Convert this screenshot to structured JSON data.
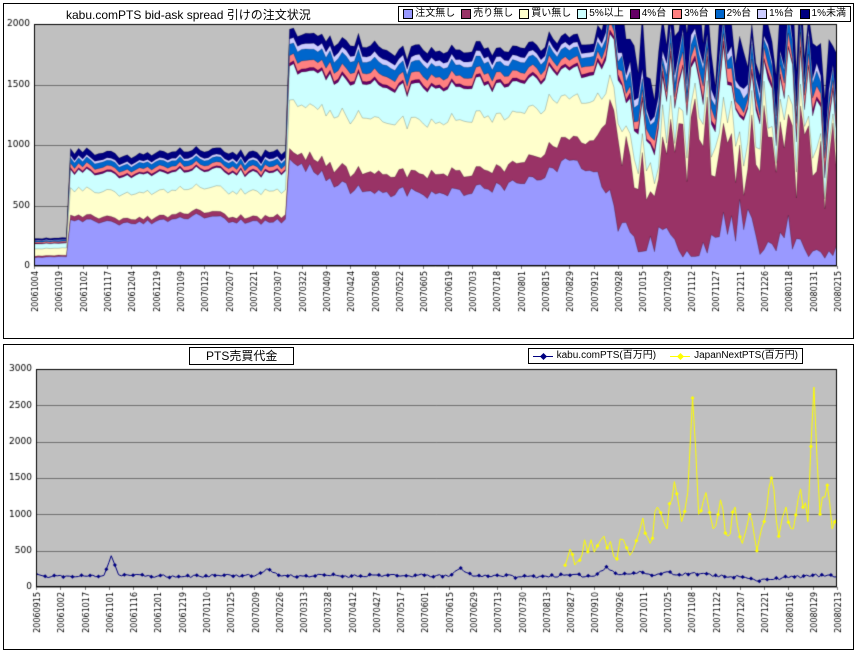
{
  "chart_data": [
    {
      "type": "area",
      "stacked": true,
      "title": "kabu.comPTS bid-ask spread 引けの注文状況",
      "ylim": [
        0,
        2000
      ],
      "yticks": [
        0,
        500,
        1000,
        1500,
        2000
      ],
      "plot_bg": "#C0C0C0",
      "grid": true,
      "legend_position": "top-right",
      "x_labels": [
        "20061004",
        "20061019",
        "20061102",
        "20061117",
        "20061204",
        "20061219",
        "20070109",
        "20070123",
        "20070207",
        "20070221",
        "20070307",
        "20070322",
        "20070409",
        "20070424",
        "20070508",
        "20070522",
        "20070605",
        "20070619",
        "20070703",
        "20070718",
        "20070801",
        "20070815",
        "20070829",
        "20070912",
        "20070928",
        "20071015",
        "20071029",
        "20071112",
        "20071127",
        "20071211",
        "20071226",
        "20080118",
        "20080131",
        "20080215"
      ],
      "volatility": [
        0.05,
        0.05,
        0.06,
        0.06,
        0.06,
        0.06,
        0.06,
        0.06,
        0.06,
        0.06,
        0.06,
        0.07,
        0.07,
        0.07,
        0.07,
        0.07,
        0.07,
        0.07,
        0.07,
        0.07,
        0.07,
        0.07,
        0.07,
        0.07,
        0.55,
        0.55,
        0.55,
        0.55,
        0.55,
        0.55,
        0.55,
        0.55,
        0.55,
        0.55
      ],
      "series": [
        {
          "name": "注文無し",
          "color": "#9999FF",
          "values": [
            70,
            75,
            380,
            360,
            340,
            370,
            390,
            420,
            380,
            360,
            370,
            850,
            720,
            640,
            600,
            615,
            590,
            605,
            625,
            650,
            700,
            755,
            880,
            800,
            350,
            150,
            280,
            80,
            260,
            400,
            120,
            280,
            90,
            180
          ]
        },
        {
          "name": "売り無し",
          "color": "#993366",
          "values": [
            12,
            12,
            38,
            40,
            35,
            36,
            40,
            42,
            38,
            40,
            42,
            90,
            120,
            150,
            160,
            150,
            170,
            160,
            150,
            160,
            170,
            200,
            180,
            250,
            700,
            900,
            650,
            1100,
            700,
            500,
            950,
            600,
            1000,
            750
          ]
        },
        {
          "name": "買い無し",
          "color": "#FFFFCC",
          "values": [
            60,
            58,
            215,
            210,
            200,
            215,
            205,
            195,
            210,
            205,
            210,
            420,
            430,
            440,
            450,
            430,
            420,
            430,
            440,
            420,
            400,
            380,
            350,
            330,
            200,
            150,
            180,
            120,
            160,
            200,
            140,
            180,
            130,
            160
          ]
        },
        {
          "name": "5%以上",
          "color": "#CCFFFF",
          "values": [
            40,
            40,
            150,
            150,
            145,
            150,
            148,
            145,
            150,
            152,
            150,
            280,
            290,
            300,
            290,
            280,
            290,
            280,
            270,
            260,
            250,
            240,
            230,
            220,
            280,
            260,
            300,
            240,
            280,
            260,
            300,
            250,
            280,
            260
          ]
        },
        {
          "name": "4%台",
          "color": "#660066",
          "values": [
            5,
            5,
            15,
            15,
            14,
            15,
            15,
            14,
            15,
            15,
            15,
            25,
            25,
            26,
            25,
            24,
            25,
            25,
            24,
            25,
            25,
            24,
            25,
            25,
            35,
            30,
            40,
            30,
            35,
            30,
            40,
            30,
            35,
            30
          ]
        },
        {
          "name": "3%台",
          "color": "#FF8080",
          "values": [
            10,
            10,
            35,
            34,
            33,
            35,
            34,
            33,
            35,
            34,
            35,
            65,
            68,
            70,
            68,
            66,
            68,
            66,
            65,
            64,
            62,
            60,
            58,
            55,
            80,
            70,
            90,
            70,
            85,
            75,
            90,
            70,
            85,
            75
          ]
        },
        {
          "name": "2%台",
          "color": "#0066CC",
          "values": [
            10,
            10,
            45,
            44,
            43,
            45,
            44,
            43,
            45,
            44,
            45,
            90,
            92,
            94,
            92,
            90,
            92,
            90,
            88,
            86,
            84,
            82,
            80,
            78,
            100,
            90,
            110,
            90,
            105,
            95,
            110,
            90,
            105,
            95
          ]
        },
        {
          "name": "1%台",
          "color": "#CCCCFF",
          "values": [
            5,
            5,
            20,
            20,
            19,
            20,
            20,
            19,
            20,
            20,
            20,
            45,
            46,
            47,
            46,
            45,
            46,
            45,
            44,
            43,
            42,
            41,
            40,
            39,
            60,
            55,
            65,
            55,
            60,
            55,
            65,
            55,
            60,
            55
          ]
        },
        {
          "name": "1%未満",
          "color": "#000080",
          "values": [
            15,
            15,
            55,
            56,
            55,
            56,
            55,
            54,
            56,
            55,
            55,
            80,
            82,
            84,
            82,
            80,
            82,
            80,
            78,
            76,
            74,
            72,
            70,
            68,
            250,
            350,
            200,
            380,
            220,
            300,
            180,
            350,
            220,
            300
          ]
        }
      ]
    },
    {
      "type": "line",
      "title": "PTS売買代金",
      "ylim": [
        0,
        3000
      ],
      "yticks": [
        0,
        500,
        1000,
        1500,
        2000,
        2500,
        3000
      ],
      "plot_bg": "#C0C0C0",
      "grid": true,
      "legend_position": "top-right",
      "x_labels": [
        "20060915",
        "20061002",
        "20061017",
        "20061101",
        "20061116",
        "20061201",
        "20061219",
        "20070110",
        "20070125",
        "20070209",
        "20070226",
        "20070313",
        "20070328",
        "20070412",
        "20070427",
        "20070517",
        "20070601",
        "20070615",
        "20070629",
        "20070713",
        "20070730",
        "20070813",
        "20070827",
        "20070910",
        "20070926",
        "20071011",
        "20071025",
        "20071108",
        "20071122",
        "20071207",
        "20071221",
        "20080116",
        "20080129",
        "20080213"
      ],
      "series": [
        {
          "name": "kabu.comPTS(百万円)",
          "color": "#000080",
          "marker": "diamond",
          "jitter": 20,
          "points": [
            [
              0,
              180
            ],
            [
              0.5,
              130
            ],
            [
              1,
              160
            ],
            [
              1.5,
              140
            ],
            [
              2,
              150
            ],
            [
              2.8,
              160
            ],
            [
              3.1,
              430
            ],
            [
              3.4,
              170
            ],
            [
              4,
              160
            ],
            [
              5,
              150
            ],
            [
              6,
              140
            ],
            [
              7,
              155
            ],
            [
              8,
              165
            ],
            [
              9,
              150
            ],
            [
              9.5,
              250
            ],
            [
              10,
              160
            ],
            [
              11,
              150
            ],
            [
              12,
              160
            ],
            [
              13,
              150
            ],
            [
              14,
              165
            ],
            [
              15,
              150
            ],
            [
              16,
              160
            ],
            [
              17,
              145
            ],
            [
              17.5,
              260
            ],
            [
              18,
              150
            ],
            [
              19,
              160
            ],
            [
              20,
              140
            ],
            [
              21,
              150
            ],
            [
              22,
              160
            ],
            [
              23,
              150
            ],
            [
              23.5,
              280
            ],
            [
              24,
              170
            ],
            [
              25,
              200
            ],
            [
              25.5,
              160
            ],
            [
              26,
              210
            ],
            [
              26.5,
              170
            ],
            [
              27,
              190
            ],
            [
              28,
              160
            ],
            [
              29,
              140
            ],
            [
              29.8,
              80
            ],
            [
              30,
              110
            ],
            [
              31,
              130
            ],
            [
              32,
              160
            ],
            [
              33,
              140
            ]
          ]
        },
        {
          "name": "JapanNextPTS(百万円)",
          "color": "#FFFF00",
          "marker": "diamond",
          "jitter": 130,
          "points": [
            [
              21.8,
              300
            ],
            [
              22,
              520
            ],
            [
              22.3,
              350
            ],
            [
              22.6,
              650
            ],
            [
              23,
              480
            ],
            [
              23.4,
              700
            ],
            [
              23.8,
              420
            ],
            [
              24.2,
              650
            ],
            [
              24.6,
              500
            ],
            [
              25,
              950
            ],
            [
              25.3,
              600
            ],
            [
              25.6,
              1100
            ],
            [
              26,
              800
            ],
            [
              26.3,
              1450
            ],
            [
              26.6,
              900
            ],
            [
              26.85,
              1300
            ],
            [
              27.05,
              2600
            ],
            [
              27.3,
              1000
            ],
            [
              27.6,
              1300
            ],
            [
              27.9,
              800
            ],
            [
              28.2,
              1200
            ],
            [
              28.5,
              700
            ],
            [
              28.8,
              1100
            ],
            [
              29.1,
              600
            ],
            [
              29.4,
              1000
            ],
            [
              29.7,
              500
            ],
            [
              30,
              900
            ],
            [
              30.3,
              1500
            ],
            [
              30.6,
              700
            ],
            [
              30.9,
              1100
            ],
            [
              31.2,
              800
            ],
            [
              31.5,
              1350
            ],
            [
              31.8,
              900
            ],
            [
              32.05,
              2750
            ],
            [
              32.3,
              1000
            ],
            [
              32.6,
              1400
            ],
            [
              32.8,
              800
            ],
            [
              33,
              950
            ]
          ]
        }
      ]
    }
  ]
}
